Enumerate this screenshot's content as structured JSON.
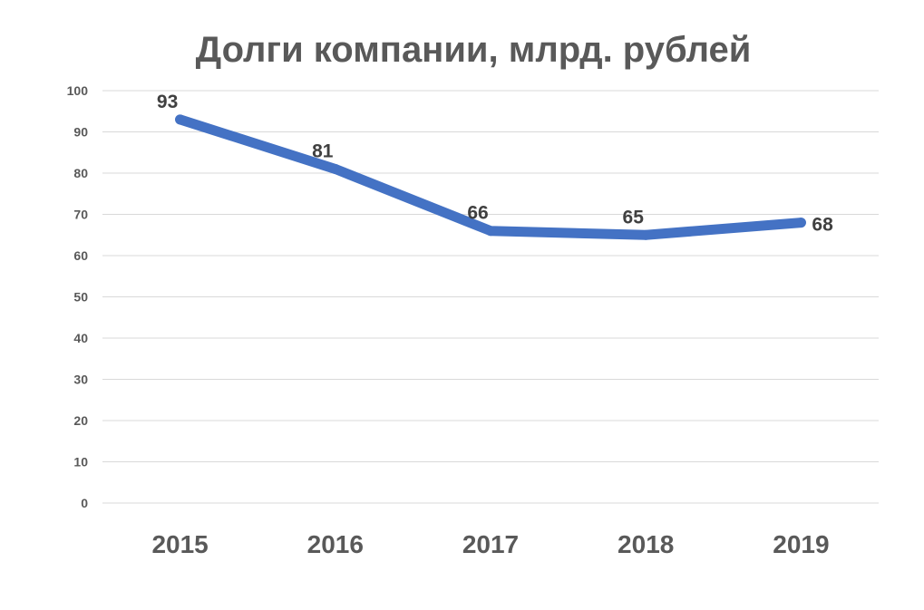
{
  "chart_data": {
    "type": "line",
    "title": "Долги компании, млрд. рублей",
    "xlabel": "",
    "ylabel": "",
    "categories": [
      "2015",
      "2016",
      "2017",
      "2018",
      "2019"
    ],
    "series": [
      {
        "values": [
          93,
          81,
          66,
          65,
          68
        ],
        "color": "#4472c4",
        "data_labels": [
          "93",
          "81",
          "66",
          "65",
          "68"
        ]
      }
    ],
    "ylim": [
      0,
      100
    ],
    "y_ticks": [
      "0",
      "10",
      "20",
      "30",
      "40",
      "50",
      "60",
      "70",
      "80",
      "90",
      "100"
    ],
    "grid": true,
    "legend": "none"
  }
}
